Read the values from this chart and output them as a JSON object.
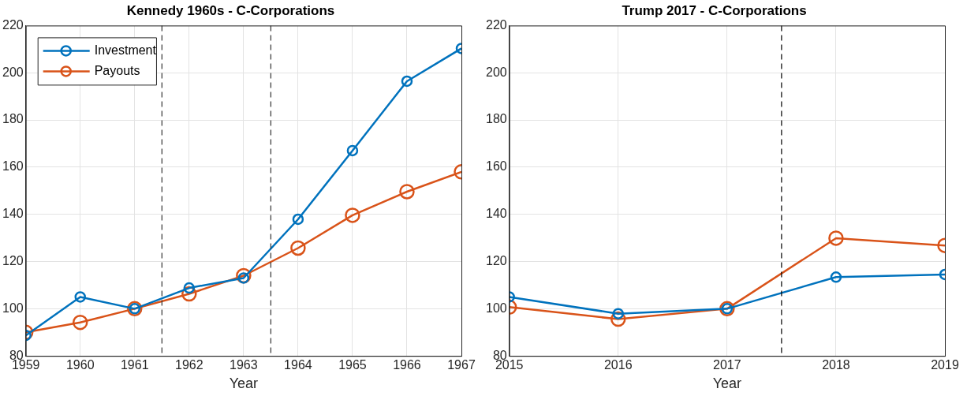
{
  "chart_data": [
    {
      "type": "line",
      "title": "Kennedy 1960s - C-Corporations",
      "xlabel": "Year",
      "x": [
        1959,
        1960,
        1961,
        1962,
        1963,
        1964,
        1965,
        1966,
        1967
      ],
      "xlim": [
        1959,
        1967
      ],
      "xticks": [
        1959,
        1960,
        1961,
        1962,
        1963,
        1964,
        1965,
        1966,
        1967
      ],
      "ylim": [
        80,
        220
      ],
      "yticks": [
        80,
        100,
        120,
        140,
        160,
        180,
        200,
        220
      ],
      "grid": true,
      "legend": "top left",
      "marker": "circle",
      "line_style": "solid",
      "series": [
        {
          "name": "Investment",
          "color": "#0072bd",
          "values": [
            88.7,
            105,
            100,
            108.8,
            113,
            137.9,
            167,
            196.4,
            210.3
          ]
        },
        {
          "name": "Payouts",
          "color": "#d95319",
          "values": [
            90,
            94.2,
            100,
            106.3,
            114,
            125.7,
            139.6,
            149.6,
            158
          ]
        }
      ],
      "ref_lines": [
        {
          "axis": "x",
          "value": 1961.5,
          "color": "#333333",
          "line_style": "dashed"
        },
        {
          "axis": "x",
          "value": 1963.5,
          "color": "#333333",
          "line_style": "dashed"
        }
      ]
    },
    {
      "type": "line",
      "title": "Trump 2017 - C-Corporations",
      "xlabel": "Year",
      "x": [
        2015,
        2016,
        2017,
        2018,
        2019
      ],
      "xlim": [
        2015,
        2019
      ],
      "xticks": [
        2015,
        2016,
        2017,
        2018,
        2019
      ],
      "ylim": [
        80,
        220
      ],
      "yticks": [
        80,
        100,
        120,
        140,
        160,
        180,
        200,
        220
      ],
      "grid": true,
      "marker": "circle",
      "line_style": "solid",
      "series": [
        {
          "color": "#0072bd",
          "values": [
            105,
            97.9,
            100,
            113.4,
            114.5
          ]
        },
        {
          "color": "#d95319",
          "values": [
            100.7,
            95.6,
            100,
            129.9,
            126.8
          ]
        }
      ],
      "ref_lines": [
        {
          "axis": "x",
          "value": 2017.5,
          "color": "#000000",
          "line_style": "dashed"
        }
      ]
    }
  ]
}
